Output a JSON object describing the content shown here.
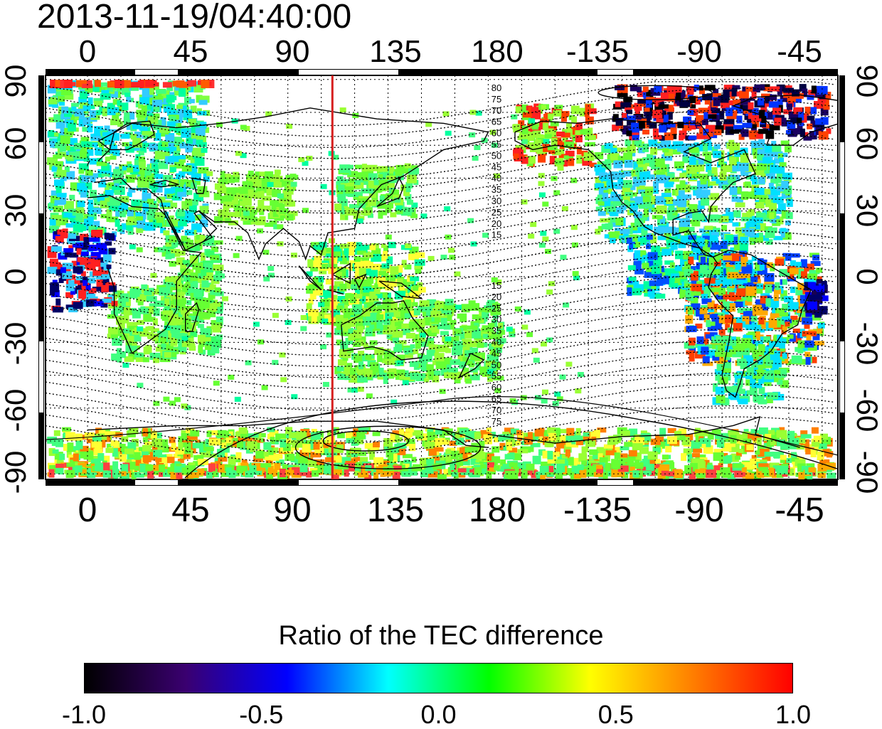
{
  "title": "2013-11-19/04:40:00",
  "map": {
    "top_lon_ticks": [
      "0",
      "45",
      "90",
      "135",
      "180",
      "-135",
      "-90",
      "-45"
    ],
    "bottom_lon_ticks": [
      "0",
      "45",
      "90",
      "135",
      "180",
      "-135",
      "-90",
      "-45"
    ],
    "left_lat_ticks": [
      "90",
      "60",
      "30",
      "0",
      "-30",
      "-60",
      "-90"
    ],
    "right_lat_ticks": [
      "90",
      "60",
      "30",
      "0",
      "-30",
      "-60",
      "-90"
    ],
    "contour_labels_north": [
      "80",
      "75",
      "70",
      "65",
      "60",
      "55",
      "50",
      "45",
      "40",
      "35",
      "30",
      "25",
      "20",
      "15"
    ],
    "contour_labels_south": [
      "15",
      "20",
      "25",
      "30",
      "35",
      "40",
      "45",
      "50",
      "55",
      "60",
      "65",
      "70",
      "75"
    ],
    "meridian_marker_lon": 110,
    "meridian_marker_color": "#d62020"
  },
  "colorbar": {
    "title": "Ratio of the TEC difference",
    "ticks": [
      "-1.0",
      "-0.5",
      "0.0",
      "0.5",
      "1.0"
    ],
    "colors": [
      "#000000",
      "#3a0070",
      "#0000ff",
      "#00ffff",
      "#00ff00",
      "#ffff00",
      "#ff8000",
      "#ff0000"
    ]
  }
}
